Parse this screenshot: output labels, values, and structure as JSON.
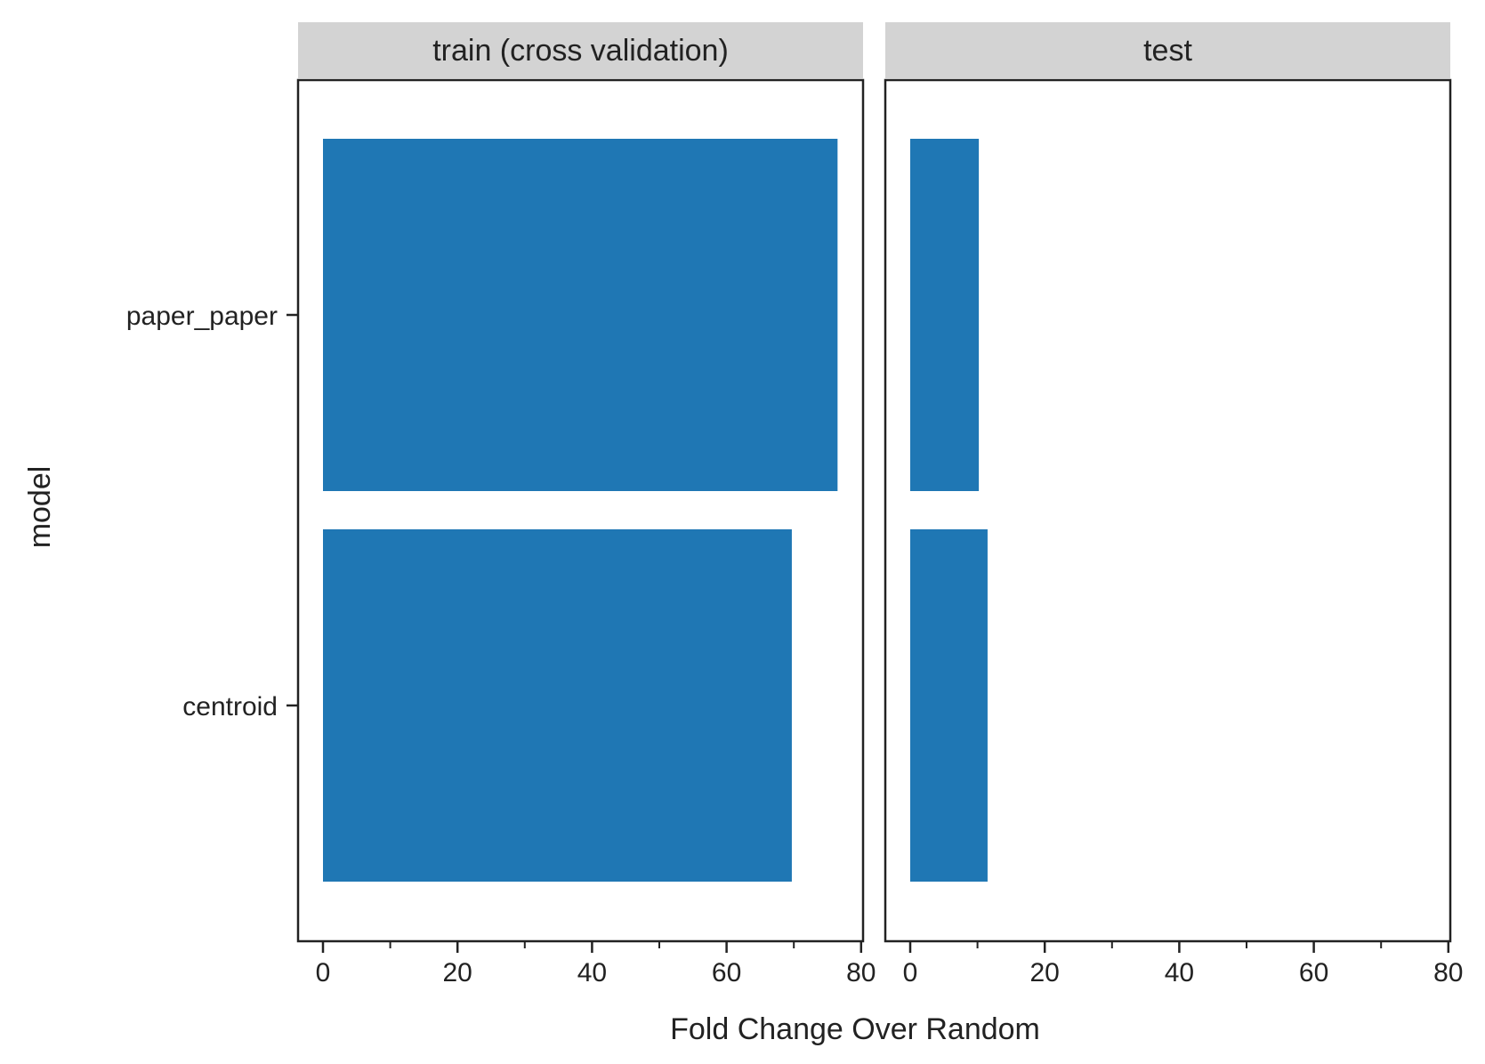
{
  "chart_data": {
    "type": "bar",
    "orientation": "horizontal",
    "categories": [
      "paper_paper",
      "centroid"
    ],
    "xlabel": "Fold Change Over Random",
    "ylabel": "model",
    "xlim": [
      0,
      80
    ],
    "x_ticks": [
      0,
      20,
      40,
      60,
      80
    ],
    "x_minor_ticks": [
      10,
      30,
      50,
      70
    ],
    "x_tick_labels": [
      "0",
      "20",
      "40",
      "60",
      "80"
    ],
    "grid": false,
    "bar_color": "#1f77b4",
    "strip_color": "#d3d3d3",
    "facets": [
      {
        "title": "train (cross validation)",
        "values": [
          76.5,
          69.7
        ]
      },
      {
        "title": "test",
        "values": [
          10.2,
          11.5
        ]
      }
    ]
  }
}
